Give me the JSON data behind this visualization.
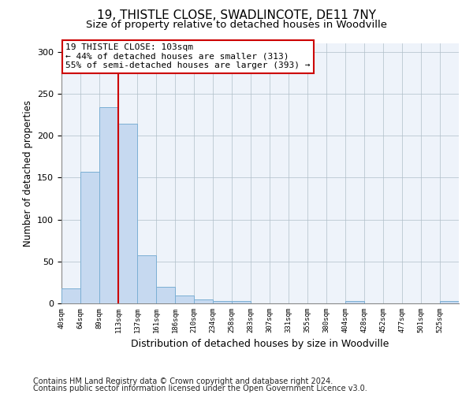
{
  "title1": "19, THISTLE CLOSE, SWADLINCOTE, DE11 7NY",
  "title2": "Size of property relative to detached houses in Woodville",
  "xlabel": "Distribution of detached houses by size in Woodville",
  "ylabel": "Number of detached properties",
  "footer1": "Contains HM Land Registry data © Crown copyright and database right 2024.",
  "footer2": "Contains public sector information licensed under the Open Government Licence v3.0.",
  "annotation_line1": "19 THISTLE CLOSE: 103sqm",
  "annotation_line2": "← 44% of detached houses are smaller (313)",
  "annotation_line3": "55% of semi-detached houses are larger (393) →",
  "bar_values": [
    18,
    157,
    234,
    214,
    57,
    20,
    9,
    5,
    3,
    3,
    0,
    0,
    0,
    0,
    0,
    3,
    0,
    0,
    0,
    0,
    3
  ],
  "bin_labels": [
    "40sqm",
    "64sqm",
    "89sqm",
    "113sqm",
    "137sqm",
    "161sqm",
    "186sqm",
    "210sqm",
    "234sqm",
    "258sqm",
    "283sqm",
    "307sqm",
    "331sqm",
    "355sqm",
    "380sqm",
    "404sqm",
    "428sqm",
    "452sqm",
    "477sqm",
    "501sqm",
    "525sqm"
  ],
  "bar_color": "#c6d9f0",
  "bar_edge_color": "#7bafd4",
  "ylim": [
    0,
    310
  ],
  "yticks": [
    0,
    50,
    100,
    150,
    200,
    250,
    300
  ],
  "title1_fontsize": 11,
  "title2_fontsize": 9.5,
  "xlabel_fontsize": 9,
  "ylabel_fontsize": 8.5,
  "tick_fontsize": 8,
  "annotation_fontsize": 8,
  "footer_fontsize": 7
}
